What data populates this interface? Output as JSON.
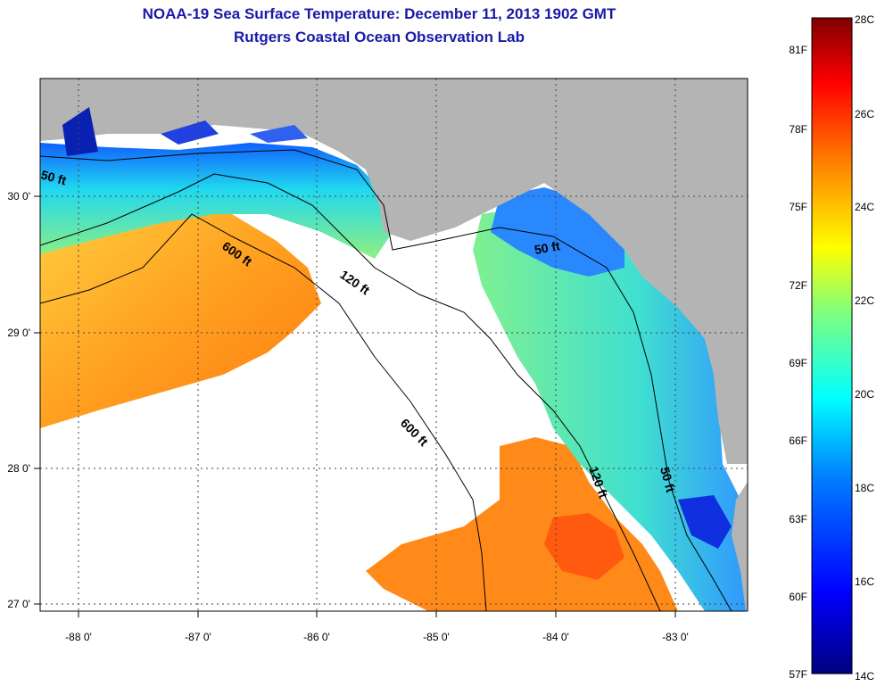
{
  "title_line1": "NOAA-19 Sea Surface Temperature:  December 11, 2013 1902 GMT",
  "title_line2": "Rutgers Coastal Ocean Observation Lab",
  "map": {
    "lon_range": [
      -88.35,
      -82.45
    ],
    "lat_range": [
      26.95,
      30.85
    ],
    "lon_ticks": [
      "-88 0'",
      "-87 0'",
      "-86 0'",
      "-85 0'",
      "-84 0'",
      "-83 0'"
    ],
    "lat_ticks": [
      "27 0'",
      "28 0'",
      "29 0'",
      "30 0'"
    ],
    "contour_labels": [
      "50 ft",
      "600 ft",
      "120 ft",
      "600 ft",
      "50 ft",
      "120 ft",
      "50 ft"
    ],
    "colors": {
      "land": "#b4b4b4",
      "no_data": "#ffffff",
      "contour": "#000000"
    }
  },
  "colorbar": {
    "fahrenheit_labels": [
      "81F",
      "78F",
      "75F",
      "72F",
      "69F",
      "66F",
      "63F",
      "60F",
      "57F"
    ],
    "celsius_labels": [
      "28C",
      "26C",
      "24C",
      "22C",
      "20C",
      "18C",
      "16C",
      "14C"
    ],
    "range_c": [
      14,
      28
    ],
    "gradient": [
      "#00007f",
      "#0000ff",
      "#007fff",
      "#00ffff",
      "#7fff7f",
      "#ffff00",
      "#ff7f00",
      "#ff0000",
      "#7f0000"
    ]
  }
}
